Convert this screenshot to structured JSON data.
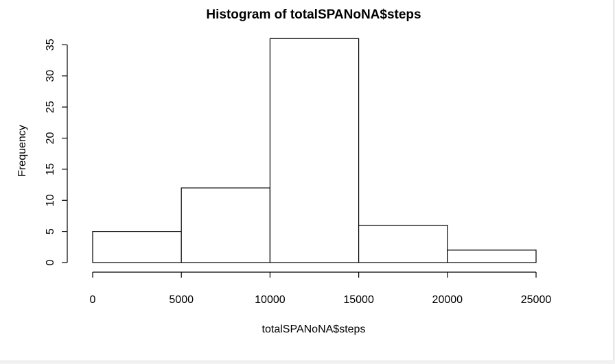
{
  "chart_data": {
    "type": "bar",
    "title": "Histogram of totalSPANoNA$steps",
    "xlabel": "totalSPANoNA$steps",
    "ylabel": "Frequency",
    "bins": [
      {
        "start": 0,
        "end": 5000,
        "count": 5
      },
      {
        "start": 5000,
        "end": 10000,
        "count": 12
      },
      {
        "start": 10000,
        "end": 15000,
        "count": 36
      },
      {
        "start": 15000,
        "end": 20000,
        "count": 6
      },
      {
        "start": 20000,
        "end": 25000,
        "count": 2
      }
    ],
    "xlim": [
      0,
      25000
    ],
    "ylim": [
      0,
      36
    ],
    "x_ticks": [
      0,
      5000,
      10000,
      15000,
      20000,
      25000
    ],
    "y_ticks": [
      0,
      5,
      10,
      15,
      20,
      25,
      30,
      35
    ],
    "bar_fill": "#ffffff",
    "bar_stroke": "#000000",
    "grid": false,
    "legend": "none"
  }
}
